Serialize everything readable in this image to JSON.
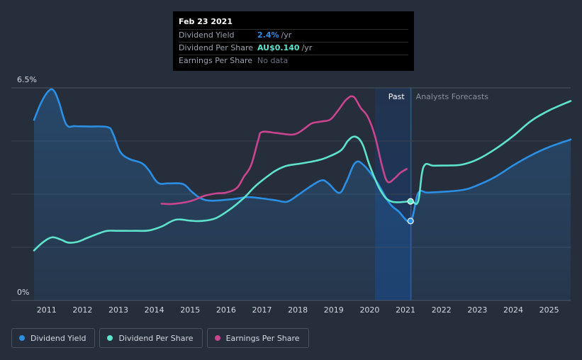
{
  "colors": {
    "background": "#262d3b",
    "dividend_yield": "#2b8fe4",
    "dividend_per_share": "#5ee3cc",
    "earnings_per_share": "#c9458f",
    "forecast_band": "#1c3a66"
  },
  "chart_data": {
    "type": "line",
    "y_axis": {
      "top_label": "6.5%",
      "bottom_label": "0%",
      "ylim": [
        0,
        6.5
      ]
    },
    "x_ticks": [
      "2011",
      "2012",
      "2013",
      "2014",
      "2015",
      "2016",
      "2017",
      "2018",
      "2019",
      "2020",
      "2021",
      "2022",
      "2023",
      "2024",
      "2025"
    ],
    "xlim": [
      2010.65,
      2025.6
    ],
    "past_label": "Past",
    "forecast_label": "Analysts Forecasts",
    "forecast_band": [
      2020.15,
      2021.15
    ],
    "series": [
      {
        "name": "Dividend Yield",
        "key": "dividend_yield",
        "area": true,
        "points": [
          [
            2010.65,
            5.52
          ],
          [
            2010.85,
            6.05
          ],
          [
            2011.05,
            6.4
          ],
          [
            2011.2,
            6.42
          ],
          [
            2011.35,
            6.05
          ],
          [
            2011.55,
            5.38
          ],
          [
            2011.8,
            5.33
          ],
          [
            2012.2,
            5.32
          ],
          [
            2012.7,
            5.3
          ],
          [
            2012.85,
            5.1
          ],
          [
            2013.05,
            4.55
          ],
          [
            2013.3,
            4.33
          ],
          [
            2013.65,
            4.2
          ],
          [
            2013.85,
            3.98
          ],
          [
            2014.1,
            3.6
          ],
          [
            2014.4,
            3.58
          ],
          [
            2014.8,
            3.56
          ],
          [
            2015.05,
            3.32
          ],
          [
            2015.3,
            3.12
          ],
          [
            2015.6,
            3.05
          ],
          [
            2016.2,
            3.1
          ],
          [
            2016.6,
            3.16
          ],
          [
            2017.0,
            3.12
          ],
          [
            2017.4,
            3.06
          ],
          [
            2017.7,
            3.02
          ],
          [
            2018.0,
            3.22
          ],
          [
            2018.3,
            3.45
          ],
          [
            2018.65,
            3.67
          ],
          [
            2018.85,
            3.58
          ],
          [
            2019.15,
            3.29
          ],
          [
            2019.35,
            3.62
          ],
          [
            2019.6,
            4.21
          ],
          [
            2019.85,
            4.12
          ],
          [
            2020.2,
            3.62
          ],
          [
            2020.55,
            2.98
          ],
          [
            2020.8,
            2.73
          ],
          [
            2021.14,
            2.43
          ],
          [
            2021.35,
            3.28
          ],
          [
            2021.6,
            3.3
          ],
          [
            2022.0,
            3.32
          ],
          [
            2022.6,
            3.38
          ],
          [
            2023.0,
            3.52
          ],
          [
            2023.5,
            3.78
          ],
          [
            2024.0,
            4.13
          ],
          [
            2024.5,
            4.44
          ],
          [
            2025.0,
            4.69
          ],
          [
            2025.6,
            4.92
          ]
        ]
      },
      {
        "name": "Dividend Per Share",
        "key": "dividend_per_share",
        "area": false,
        "points": [
          [
            2010.65,
            1.53
          ],
          [
            2010.9,
            1.78
          ],
          [
            2011.15,
            1.93
          ],
          [
            2011.4,
            1.86
          ],
          [
            2011.6,
            1.77
          ],
          [
            2011.85,
            1.79
          ],
          [
            2012.15,
            1.92
          ],
          [
            2012.5,
            2.07
          ],
          [
            2012.7,
            2.13
          ],
          [
            2013.0,
            2.13
          ],
          [
            2013.5,
            2.13
          ],
          [
            2013.85,
            2.14
          ],
          [
            2014.2,
            2.26
          ],
          [
            2014.6,
            2.47
          ],
          [
            2015.0,
            2.44
          ],
          [
            2015.3,
            2.43
          ],
          [
            2015.7,
            2.51
          ],
          [
            2016.1,
            2.78
          ],
          [
            2016.5,
            3.14
          ],
          [
            2016.8,
            3.48
          ],
          [
            2017.1,
            3.75
          ],
          [
            2017.4,
            3.98
          ],
          [
            2017.7,
            4.12
          ],
          [
            2018.1,
            4.19
          ],
          [
            2018.5,
            4.27
          ],
          [
            2018.8,
            4.37
          ],
          [
            2019.2,
            4.59
          ],
          [
            2019.4,
            4.89
          ],
          [
            2019.6,
            5.01
          ],
          [
            2019.8,
            4.78
          ],
          [
            2020.0,
            4.13
          ],
          [
            2020.3,
            3.37
          ],
          [
            2020.6,
            3.03
          ],
          [
            2021.14,
            3.03
          ],
          [
            2021.35,
            3.03
          ],
          [
            2021.5,
            4.08
          ],
          [
            2021.8,
            4.12
          ],
          [
            2022.3,
            4.13
          ],
          [
            2022.6,
            4.16
          ],
          [
            2023.0,
            4.31
          ],
          [
            2023.5,
            4.63
          ],
          [
            2024.0,
            5.03
          ],
          [
            2024.5,
            5.49
          ],
          [
            2025.0,
            5.81
          ],
          [
            2025.6,
            6.1
          ]
        ]
      },
      {
        "name": "Earnings Per Share",
        "key": "earnings_per_share",
        "area": false,
        "points": [
          [
            2014.2,
            2.96
          ],
          [
            2014.5,
            2.95
          ],
          [
            2014.9,
            3.01
          ],
          [
            2015.1,
            3.07
          ],
          [
            2015.4,
            3.2
          ],
          [
            2015.7,
            3.27
          ],
          [
            2016.0,
            3.3
          ],
          [
            2016.3,
            3.44
          ],
          [
            2016.5,
            3.79
          ],
          [
            2016.7,
            4.14
          ],
          [
            2016.9,
            4.92
          ],
          [
            2017.0,
            5.15
          ],
          [
            2017.4,
            5.12
          ],
          [
            2017.8,
            5.07
          ],
          [
            2018.0,
            5.12
          ],
          [
            2018.2,
            5.27
          ],
          [
            2018.4,
            5.42
          ],
          [
            2018.65,
            5.47
          ],
          [
            2018.9,
            5.53
          ],
          [
            2019.1,
            5.78
          ],
          [
            2019.35,
            6.14
          ],
          [
            2019.55,
            6.23
          ],
          [
            2019.75,
            5.89
          ],
          [
            2019.95,
            5.61
          ],
          [
            2020.15,
            5.02
          ],
          [
            2020.35,
            4.09
          ],
          [
            2020.5,
            3.63
          ],
          [
            2020.7,
            3.74
          ],
          [
            2020.85,
            3.9
          ],
          [
            2021.03,
            4.02
          ]
        ]
      }
    ],
    "markers": [
      {
        "series": "dividend_per_share",
        "x": 2021.14,
        "y": 3.03
      },
      {
        "series": "dividend_yield",
        "x": 2021.14,
        "y": 2.43
      }
    ]
  },
  "tooltip": {
    "date": "Feb 23 2021",
    "rows": [
      {
        "label": "Dividend Yield",
        "value": "2.4%",
        "suffix": "/yr",
        "color_key": "dividend_yield"
      },
      {
        "label": "Dividend Per Share",
        "value": "AU$0.140",
        "suffix": "/yr",
        "color_key": "dividend_per_share"
      },
      {
        "label": "Earnings Per Share",
        "value": "No data",
        "suffix": "",
        "color_key": "none"
      }
    ]
  },
  "legend": {
    "items": [
      {
        "label": "Dividend Yield",
        "color_key": "dividend_yield"
      },
      {
        "label": "Dividend Per Share",
        "color_key": "dividend_per_share"
      },
      {
        "label": "Earnings Per Share",
        "color_key": "earnings_per_share"
      }
    ]
  }
}
